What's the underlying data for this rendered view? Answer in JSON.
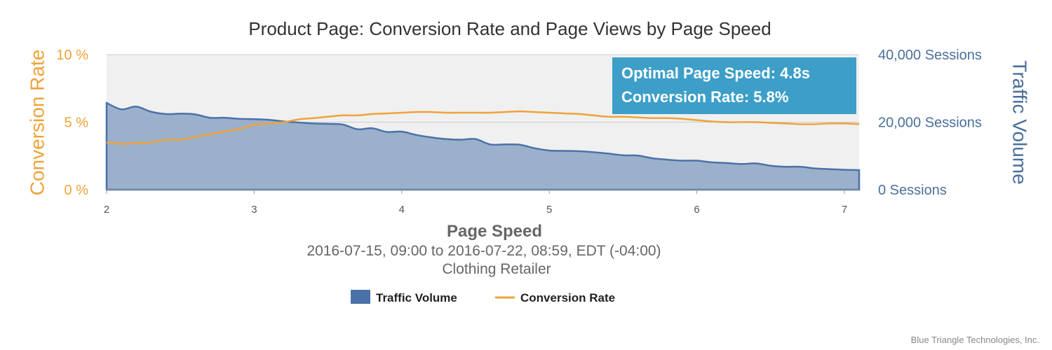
{
  "chart_data": {
    "type": "area",
    "title": "Product Page: Conversion Rate and Page Views by Page Speed",
    "subtitle": "2016-07-15, 09:00 to 2016-07-22, 08:59, EDT (-04:00)",
    "subtitle2": "Clothing Retailer",
    "xlabel": "Page Speed",
    "xlim": [
      2,
      7.1
    ],
    "xticks": [
      "2",
      "3",
      "4",
      "5",
      "6",
      "7"
    ],
    "y_left": {
      "label": "Conversion Rate",
      "lim": [
        0,
        10
      ],
      "ticks": [
        {
          "value": 0,
          "label": "0 %"
        },
        {
          "value": 5,
          "label": "5 %"
        },
        {
          "value": 10,
          "label": "10 %"
        }
      ]
    },
    "y_right": {
      "label": "Traffic Volume",
      "lim": [
        0,
        40000
      ],
      "ticks": [
        {
          "value": 0,
          "label": "0 Sessions"
        },
        {
          "value": 20000,
          "label": "20,000 Sessions"
        },
        {
          "value": 40000,
          "label": "40,000 Sessions"
        }
      ]
    },
    "annotation": {
      "line1": "Optimal Page Speed: 4.8s",
      "line2": "Conversion Rate: 5.8%"
    },
    "series": [
      {
        "name": "Traffic Volume",
        "type": "area",
        "axis": "right",
        "color": "#4a72a8",
        "x": [
          2.0,
          2.1,
          2.2,
          2.3,
          2.4,
          2.5,
          2.6,
          2.7,
          2.8,
          2.9,
          3.0,
          3.1,
          3.2,
          3.3,
          3.4,
          3.5,
          3.6,
          3.7,
          3.8,
          3.9,
          4.0,
          4.1,
          4.2,
          4.3,
          4.4,
          4.5,
          4.6,
          4.7,
          4.8,
          4.9,
          5.0,
          5.1,
          5.2,
          5.3,
          5.4,
          5.5,
          5.6,
          5.7,
          5.8,
          5.9,
          6.0,
          6.1,
          6.2,
          6.3,
          6.4,
          6.5,
          6.6,
          6.7,
          6.8,
          6.9,
          7.0,
          7.1
        ],
        "values": [
          25700,
          23800,
          24600,
          23100,
          22400,
          22500,
          22300,
          21300,
          21300,
          21000,
          20900,
          20700,
          20200,
          19900,
          19600,
          19500,
          19300,
          17900,
          18200,
          17100,
          17200,
          16200,
          15500,
          15000,
          14800,
          15000,
          13400,
          13400,
          13300,
          12300,
          11600,
          11500,
          11400,
          11100,
          10700,
          10200,
          10100,
          9300,
          8900,
          8600,
          8600,
          8100,
          7900,
          7600,
          7800,
          7100,
          6800,
          6800,
          6300,
          6100,
          5900,
          5800
        ]
      },
      {
        "name": "Conversion Rate",
        "type": "line",
        "axis": "left",
        "color": "#f0a23a",
        "x": [
          2.0,
          2.1,
          2.2,
          2.3,
          2.4,
          2.5,
          2.6,
          2.7,
          2.8,
          2.9,
          3.0,
          3.1,
          3.2,
          3.3,
          3.4,
          3.5,
          3.6,
          3.7,
          3.8,
          3.9,
          4.0,
          4.1,
          4.2,
          4.3,
          4.4,
          4.5,
          4.6,
          4.7,
          4.8,
          4.9,
          5.0,
          5.1,
          5.2,
          5.3,
          5.4,
          5.5,
          5.6,
          5.7,
          5.8,
          5.9,
          6.0,
          6.1,
          6.2,
          6.3,
          6.4,
          6.5,
          6.6,
          6.7,
          6.8,
          6.9,
          7.0,
          7.1
        ],
        "values": [
          3.5,
          3.4,
          3.45,
          3.5,
          3.7,
          3.7,
          3.9,
          4.1,
          4.3,
          4.5,
          4.8,
          4.9,
          5.0,
          5.2,
          5.3,
          5.4,
          5.5,
          5.5,
          5.6,
          5.65,
          5.7,
          5.75,
          5.75,
          5.7,
          5.7,
          5.7,
          5.7,
          5.75,
          5.8,
          5.75,
          5.7,
          5.65,
          5.6,
          5.5,
          5.4,
          5.4,
          5.35,
          5.3,
          5.3,
          5.25,
          5.15,
          5.05,
          5.0,
          5.0,
          5.0,
          4.95,
          4.9,
          4.85,
          4.85,
          4.9,
          4.9,
          4.85
        ]
      }
    ],
    "legend": {
      "placement": "bottom-center",
      "items": [
        {
          "label": "Traffic Volume",
          "color": "#4a72a8",
          "shape": "square"
        },
        {
          "label": "Conversion Rate",
          "color": "#f0a23a",
          "shape": "line"
        }
      ]
    },
    "colors": {
      "plot_background": "#f0f0f0",
      "area_fill": "#9bb1cb",
      "area_stroke": "#4a72a8",
      "line": "#f0a23a",
      "annotation_bg": "#3d9fc8",
      "gridline": "#cccccc"
    },
    "credit": "Blue Triangle Technologies, Inc."
  }
}
